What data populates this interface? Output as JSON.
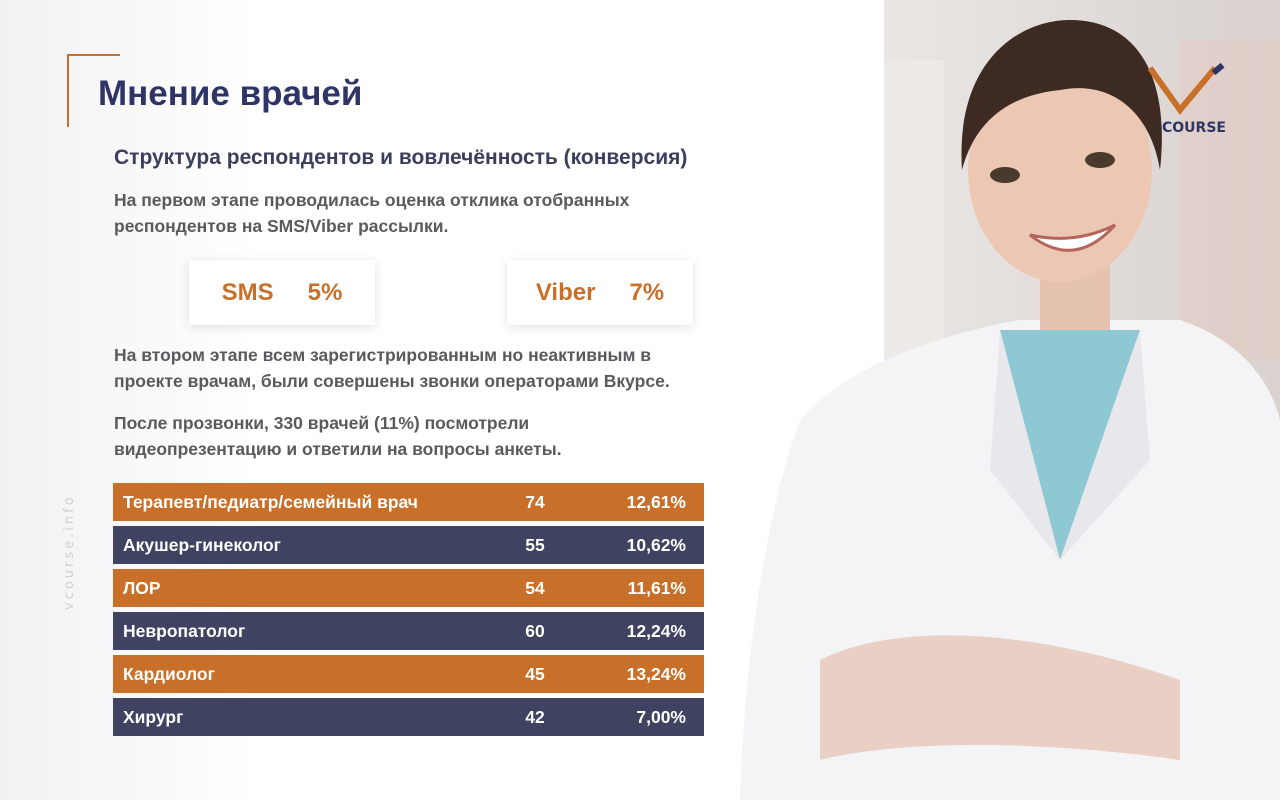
{
  "header": {
    "title": "Мнение врачей",
    "subtitle": "Структура респондентов и вовлечённость (конверсия)"
  },
  "logo": {
    "text": "COURSE"
  },
  "side_text": "vcourse.info",
  "paragraphs": [
    {
      "lines": [
        "На первом этапе проводилась оценка отклика отобранных",
        "респондентов  на SMS/Viber рассылки."
      ]
    },
    {
      "lines": [
        "На втором этапе всем зарегистрированным но неактивным в",
        "проекте врачам, были совершены звонки операторами Вкурсе."
      ]
    },
    {
      "lines": [
        "После прозвонки, 330 врачей (11%) посмотрели",
        "видеопрезентацию и ответили на вопросы анкеты."
      ]
    }
  ],
  "stats": [
    {
      "label": "SMS",
      "value": "5%"
    },
    {
      "label": "Viber",
      "value": "7%"
    }
  ],
  "table": {
    "rows": [
      [
        "Терапевт/педиатр/семейный врач",
        74,
        "12,61%"
      ],
      [
        "Акушер-гинеколог",
        55,
        "10,62%"
      ],
      [
        "ЛОР",
        54,
        "11,61%"
      ],
      [
        "Невропатолог",
        60,
        "12,24%"
      ],
      [
        "Кардиолог",
        45,
        "13,24%"
      ],
      [
        "Хирург",
        42,
        "7,00%"
      ]
    ]
  }
}
